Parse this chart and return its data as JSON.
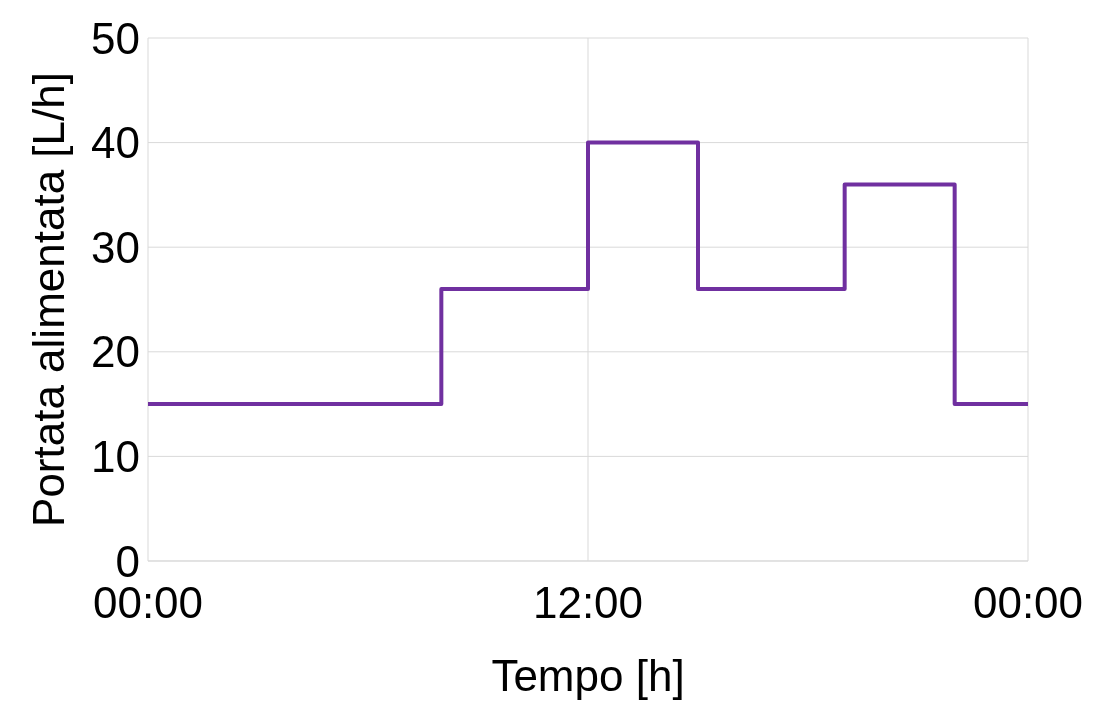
{
  "chart_data": {
    "type": "step",
    "xlabel": "Tempo [h]",
    "ylabel": "Portata alimentata [L/h]",
    "x": [
      0,
      8,
      12,
      15,
      19,
      22,
      24
    ],
    "series": [
      {
        "color": "#7030a0",
        "values": [
          15,
          26,
          40,
          26,
          36,
          15,
          15
        ]
      }
    ],
    "xlim": [
      0,
      24
    ],
    "xticks": [
      {
        "value": 0,
        "label": "00:00"
      },
      {
        "value": 12,
        "label": "12:00"
      },
      {
        "value": 24,
        "label": "00:00"
      }
    ],
    "ylim": [
      0,
      50
    ],
    "yticks": [
      0,
      10,
      20,
      30,
      40,
      50
    ],
    "grid": true,
    "line_style": "solid",
    "marker": "none"
  }
}
